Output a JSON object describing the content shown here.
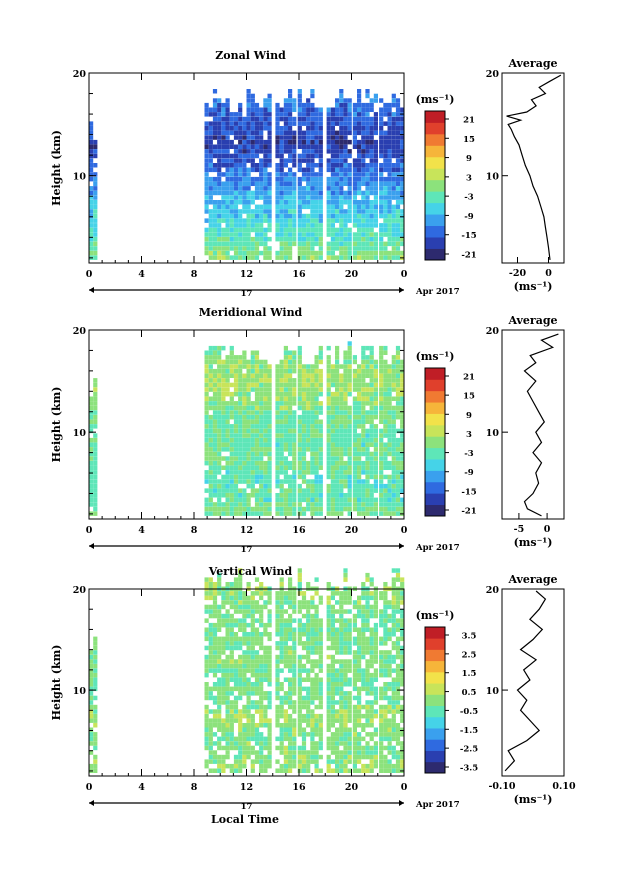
{
  "panels": [
    {
      "title": "Zonal Wind",
      "ylabel": "Height (km)",
      "units": "(ms⁻¹)",
      "xticks": [
        "0",
        "4",
        "8",
        "12",
        "16",
        "20",
        "0"
      ],
      "yticks": [
        "20",
        "10"
      ],
      "date_day": "17",
      "date_label": "Apr 2017",
      "colorbar_ticks": [
        "21",
        "15",
        "9",
        "3",
        "-3",
        "-9",
        "-15",
        "-21"
      ],
      "avg_title": "Average",
      "avg_xticks": [
        "-20",
        "0"
      ],
      "avg_yticks": [
        "20",
        "10"
      ],
      "avg_units": "(ms⁻¹)"
    },
    {
      "title": "Meridional Wind",
      "ylabel": "Height (km)",
      "units": "(ms⁻¹)",
      "xticks": [
        "0",
        "4",
        "8",
        "12",
        "16",
        "20",
        "0"
      ],
      "yticks": [
        "20",
        "10"
      ],
      "date_day": "17",
      "date_label": "Apr 2017",
      "colorbar_ticks": [
        "21",
        "15",
        "9",
        "3",
        "-3",
        "-9",
        "-15",
        "-21"
      ],
      "avg_title": "Average",
      "avg_xticks": [
        "-5",
        "0"
      ],
      "avg_yticks": [
        "20",
        "10"
      ],
      "avg_units": "(ms⁻¹)"
    },
    {
      "title": "Vertical Wind",
      "ylabel": "Height (km)",
      "units": "(ms⁻¹)",
      "xticks": [
        "0",
        "4",
        "8",
        "12",
        "16",
        "20",
        "0"
      ],
      "yticks": [
        "20",
        "10"
      ],
      "date_day": "17",
      "date_label": "Apr 2017",
      "colorbar_ticks": [
        "3.5",
        "2.5",
        "1.5",
        "0.5",
        "-0.5",
        "-1.5",
        "-2.5",
        "-3.5"
      ],
      "avg_title": "Average",
      "avg_xticks": [
        "-0.10",
        "0.10"
      ],
      "avg_yticks": [
        "20",
        "10"
      ],
      "avg_units": "(ms⁻¹)"
    }
  ],
  "xlabel": "Local Time",
  "colors": {
    "scale": [
      "#2d2a6e",
      "#2a3fb0",
      "#2f6ae0",
      "#3aa0ee",
      "#45d3e8",
      "#5ee6b8",
      "#8ce27c",
      "#c8e45a",
      "#f2e24a",
      "#f6b53a",
      "#f07a32",
      "#e0402c",
      "#c01e26"
    ]
  },
  "chart_data": [
    {
      "type": "heatmap",
      "title": "Zonal Wind",
      "xlabel": "",
      "ylabel": "Height (km)",
      "xlim": [
        0,
        24
      ],
      "ylim": [
        1.5,
        20
      ],
      "color_range": [
        -24,
        24
      ],
      "time_coverage": [
        [
          0,
          0.5
        ],
        [
          8.8,
          13.8
        ],
        [
          14.2,
          15.5
        ],
        [
          15.9,
          17.8
        ],
        [
          18.1,
          19.8
        ],
        [
          20.1,
          21.8
        ],
        [
          22.1,
          23.8
        ]
      ],
      "rows": [
        {
          "h": 18.5,
          "v": -12
        },
        {
          "h": 17,
          "v": -14
        },
        {
          "h": 15,
          "v": -16
        },
        {
          "h": 13,
          "v": -19
        },
        {
          "h": 11,
          "v": -16
        },
        {
          "h": 9,
          "v": -12
        },
        {
          "h": 7,
          "v": -9
        },
        {
          "h": 5,
          "v": -6
        },
        {
          "h": 3,
          "v": -3
        },
        {
          "h": 2,
          "v": 0
        }
      ],
      "average": {
        "xlim": [
          -30,
          10
        ],
        "profile": [
          {
            "h": 1.8,
            "v": 1
          },
          {
            "h": 3,
            "v": 0
          },
          {
            "h": 4,
            "v": -1
          },
          {
            "h": 5,
            "v": -2
          },
          {
            "h": 6,
            "v": -3
          },
          {
            "h": 7,
            "v": -5
          },
          {
            "h": 8,
            "v": -7
          },
          {
            "h": 9,
            "v": -10
          },
          {
            "h": 10,
            "v": -12
          },
          {
            "h": 11,
            "v": -15
          },
          {
            "h": 12,
            "v": -17
          },
          {
            "h": 13,
            "v": -19
          },
          {
            "h": 13.8,
            "v": -22
          },
          {
            "h": 14.5,
            "v": -24
          },
          {
            "h": 15,
            "v": -26
          },
          {
            "h": 15.4,
            "v": -18
          },
          {
            "h": 15.8,
            "v": -27
          },
          {
            "h": 16.2,
            "v": -14
          },
          {
            "h": 16.8,
            "v": -8
          },
          {
            "h": 17.4,
            "v": -11
          },
          {
            "h": 18,
            "v": -2
          },
          {
            "h": 18.6,
            "v": -6
          },
          {
            "h": 19.2,
            "v": 1
          },
          {
            "h": 19.8,
            "v": 8
          }
        ]
      }
    },
    {
      "type": "heatmap",
      "title": "Meridional Wind",
      "xlabel": "",
      "ylabel": "Height (km)",
      "xlim": [
        0,
        24
      ],
      "ylim": [
        1.5,
        20
      ],
      "color_range": [
        -24,
        24
      ],
      "time_coverage": [
        [
          0,
          0.5
        ],
        [
          8.8,
          13.8
        ],
        [
          14.2,
          15.5
        ],
        [
          15.9,
          17.8
        ],
        [
          18.1,
          19.8
        ],
        [
          20.1,
          21.8
        ],
        [
          22.1,
          23.8
        ]
      ],
      "rows": [
        {
          "h": 18.5,
          "v": -4
        },
        {
          "h": 17,
          "v": 0
        },
        {
          "h": 15,
          "v": 1
        },
        {
          "h": 13,
          "v": 0
        },
        {
          "h": 11,
          "v": -2
        },
        {
          "h": 9,
          "v": -3
        },
        {
          "h": 7,
          "v": -2
        },
        {
          "h": 5,
          "v": -4
        },
        {
          "h": 3,
          "v": -3
        },
        {
          "h": 2,
          "v": -1
        }
      ],
      "average": {
        "xlim": [
          -8,
          3
        ],
        "profile": [
          {
            "h": 1.8,
            "v": -1
          },
          {
            "h": 2.5,
            "v": -3.5
          },
          {
            "h": 3.2,
            "v": -4
          },
          {
            "h": 4,
            "v": -2.5
          },
          {
            "h": 5,
            "v": -1.5
          },
          {
            "h": 6,
            "v": -2
          },
          {
            "h": 7,
            "v": -1
          },
          {
            "h": 8,
            "v": -2.5
          },
          {
            "h": 9,
            "v": -1
          },
          {
            "h": 10,
            "v": -2
          },
          {
            "h": 11,
            "v": -0.5
          },
          {
            "h": 12,
            "v": -1.5
          },
          {
            "h": 13,
            "v": -2.5
          },
          {
            "h": 14,
            "v": -3.5
          },
          {
            "h": 15,
            "v": -2
          },
          {
            "h": 16,
            "v": -4
          },
          {
            "h": 16.8,
            "v": -2
          },
          {
            "h": 17.5,
            "v": -3
          },
          {
            "h": 18.3,
            "v": 1
          },
          {
            "h": 19,
            "v": -1
          },
          {
            "h": 19.6,
            "v": 2
          }
        ]
      }
    },
    {
      "type": "heatmap",
      "title": "Vertical Wind",
      "xlabel": "Local Time",
      "ylabel": "Height (km)",
      "xlim": [
        0,
        24
      ],
      "ylim": [
        1.5,
        20
      ],
      "color_range": [
        -4,
        4
      ],
      "time_coverage": [
        [
          0,
          0.5
        ],
        [
          8.8,
          13.8
        ],
        [
          14.2,
          15.5
        ],
        [
          15.9,
          17.8
        ],
        [
          18.1,
          19.8
        ],
        [
          20.1,
          21.8
        ],
        [
          22.1,
          23.8
        ]
      ],
      "rows": [
        {
          "h": 19,
          "v": 0
        },
        {
          "h": 17,
          "v": -0.3
        },
        {
          "h": 15,
          "v": -0.2
        },
        {
          "h": 13,
          "v": -0.1
        },
        {
          "h": 11,
          "v": -0.2
        },
        {
          "h": 9,
          "v": -0.3
        },
        {
          "h": 7,
          "v": 0.2
        },
        {
          "h": 5,
          "v": -0.2
        },
        {
          "h": 3,
          "v": 0
        }
      ],
      "average": {
        "xlim": [
          -0.1,
          0.1
        ],
        "profile": [
          {
            "h": 2,
            "v": -0.09
          },
          {
            "h": 3,
            "v": -0.06
          },
          {
            "h": 4,
            "v": -0.08
          },
          {
            "h": 5,
            "v": -0.02
          },
          {
            "h": 6,
            "v": 0.02
          },
          {
            "h": 7,
            "v": -0.01
          },
          {
            "h": 8,
            "v": -0.04
          },
          {
            "h": 9,
            "v": -0.02
          },
          {
            "h": 10,
            "v": -0.05
          },
          {
            "h": 11,
            "v": -0.01
          },
          {
            "h": 12,
            "v": -0.03
          },
          {
            "h": 13,
            "v": 0.01
          },
          {
            "h": 14,
            "v": -0.04
          },
          {
            "h": 15,
            "v": 0.0
          },
          {
            "h": 16,
            "v": 0.03
          },
          {
            "h": 17,
            "v": -0.01
          },
          {
            "h": 18,
            "v": 0.02
          },
          {
            "h": 19,
            "v": 0.04
          },
          {
            "h": 19.8,
            "v": 0.01
          }
        ]
      }
    }
  ]
}
